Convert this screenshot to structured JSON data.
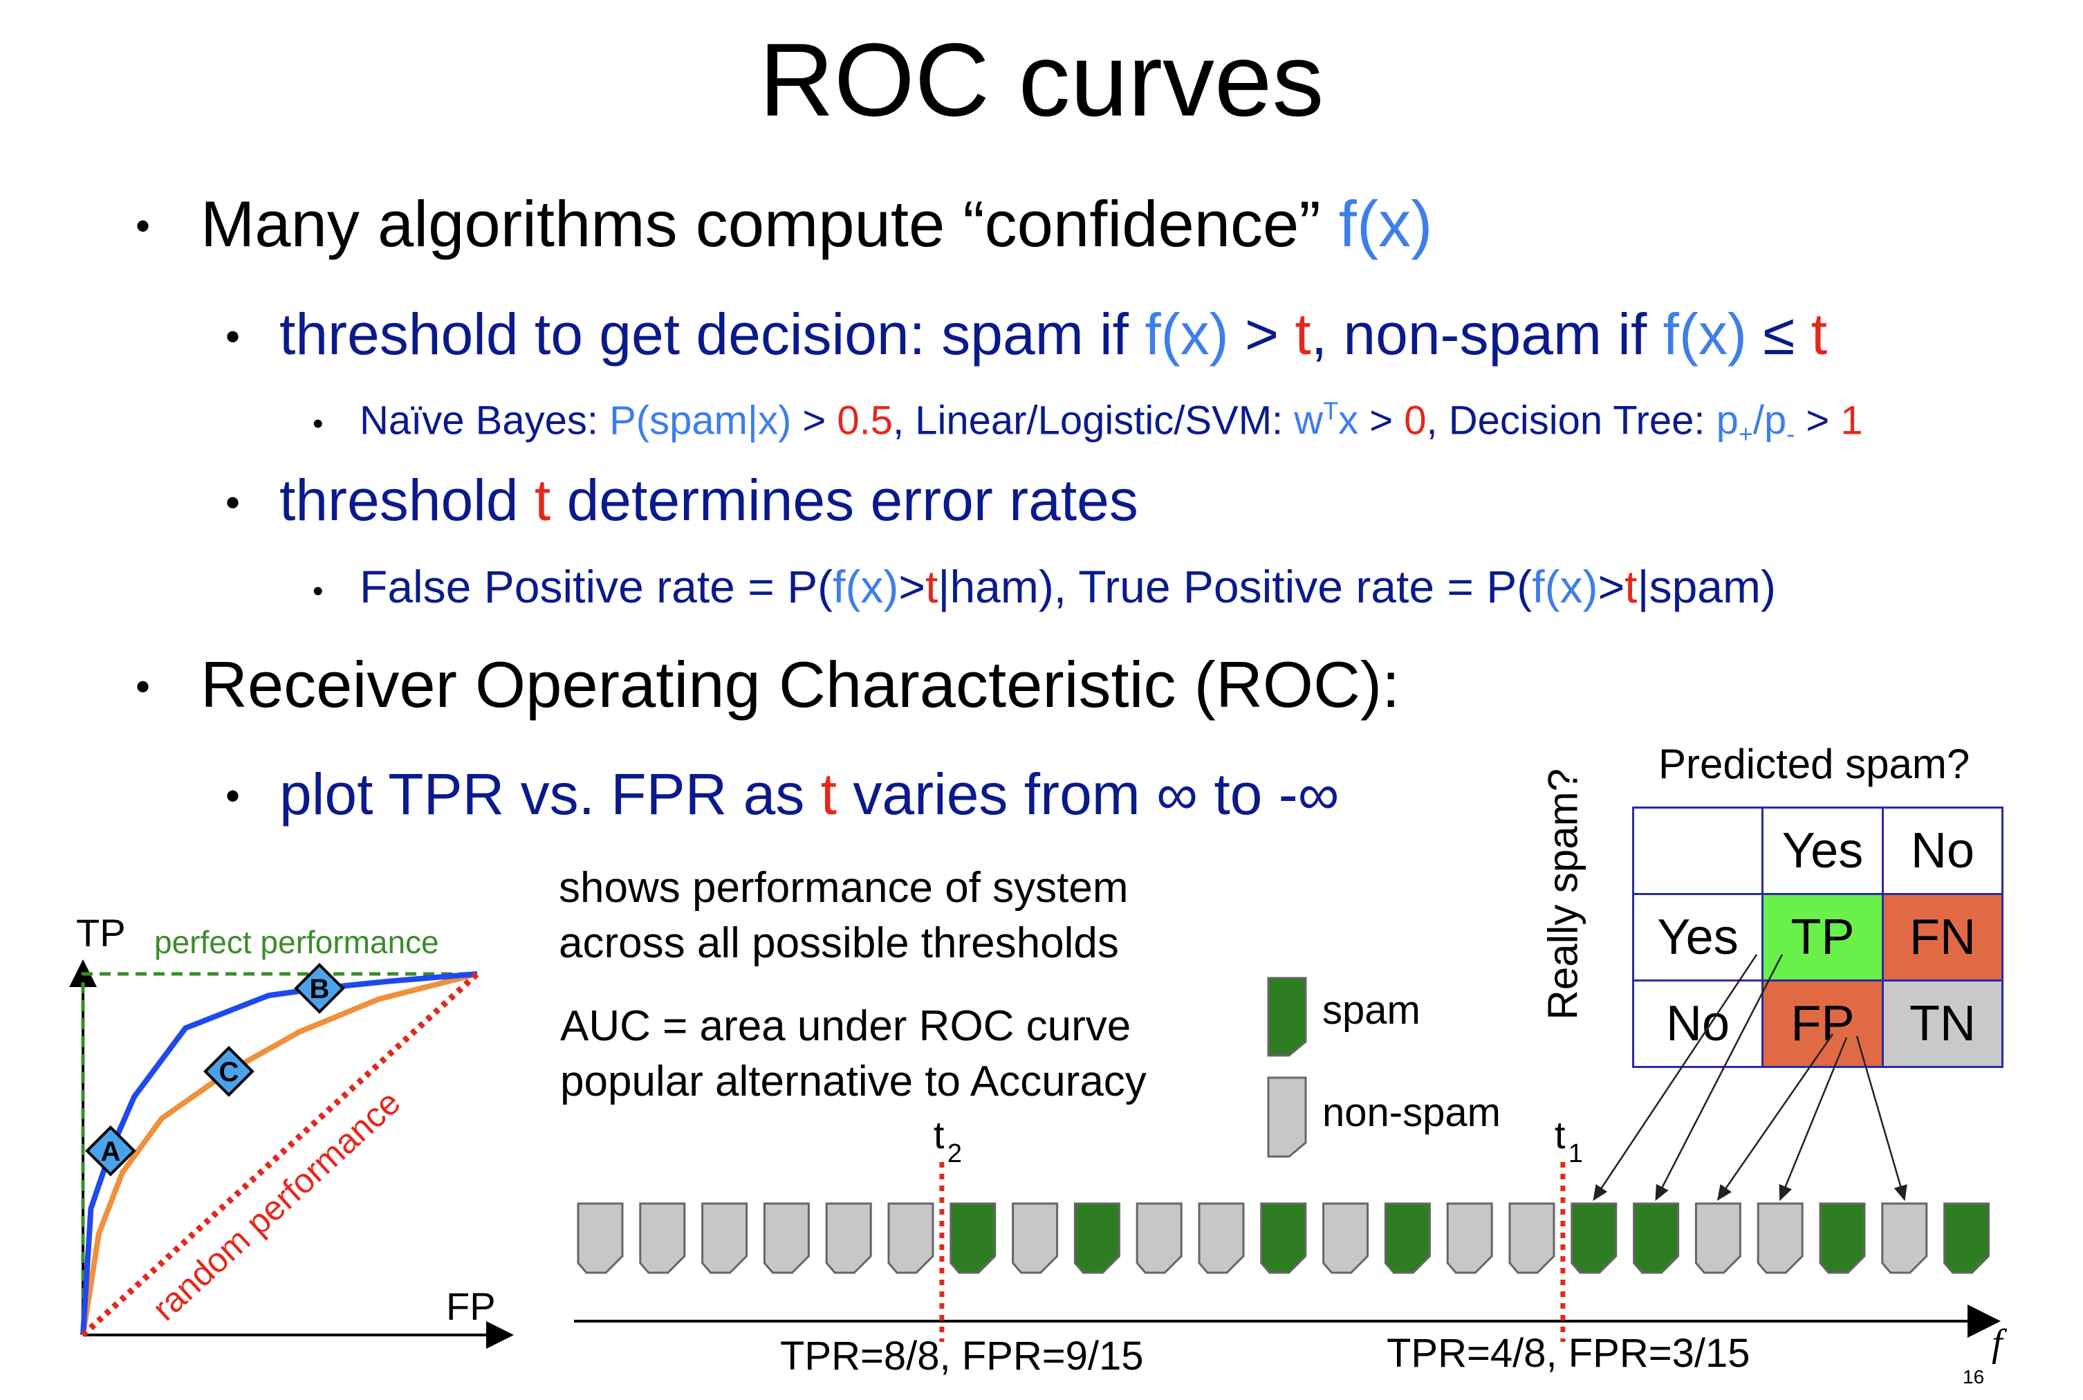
{
  "title": "ROC curves",
  "bullets": {
    "b1": {
      "text": "Many algorithms compute “confidence” ",
      "fx": "f(x)"
    },
    "b1a": {
      "p1": "threshold to get decision: spam if ",
      "fx": "f(x)",
      "gt": " > ",
      "t": "t",
      "p2": ", non-spam if ",
      "fx2": "f(x)",
      "le": " ≤ ",
      "t2": "t"
    },
    "b1a1": {
      "p1": "Naïve Bayes: ",
      "pspam": "P(spam|x)",
      "gt1": " > ",
      "v05": "0.5",
      "p2": ", Linear/Logistic/SVM: ",
      "w": "w",
      "wsup": "T",
      "x": "x",
      "gt2": " > ",
      "v0": "0",
      "p3": ", Decision Tree: ",
      "pp": "p",
      "ppsub": "+",
      "slash": "/p",
      "pmsub": "-",
      "gt3": " > ",
      "v1": "1"
    },
    "b1b": {
      "p1": "threshold ",
      "t": "t",
      "p2": " determines error rates"
    },
    "b1b1": {
      "p1": "False Positive rate = P(",
      "fx": "f(x)",
      "gt": ">",
      "t": "t",
      "p2": "|ham), True Positive rate = P(",
      "fx2": "f(x)",
      "gt2": ">",
      "t2": "t",
      "p3": "|spam)"
    },
    "b2": {
      "text": "Receiver Operating Characteristic (ROC):"
    },
    "b2a": {
      "p1": "plot TPR vs. FPR as ",
      "t": "t",
      "p2": " varies from ∞ to -∞"
    }
  },
  "description": {
    "line1": "shows performance of system",
    "line2": "across all possible thresholds",
    "line3": "AUC = area under ROC curve",
    "line4": "popular alternative to Accuracy"
  },
  "roc_plot": {
    "y_label": "TP",
    "x_label": "FP",
    "perfect_label": "perfect performance",
    "random_label": "random performance",
    "points": [
      {
        "label": "A",
        "fpr": 0.07,
        "tpr": 0.51
      },
      {
        "label": "B",
        "fpr": 0.6,
        "tpr": 0.96
      },
      {
        "label": "C",
        "fpr": 0.37,
        "tpr": 0.73
      }
    ],
    "curves": {
      "blue": [
        [
          0,
          0
        ],
        [
          0.02,
          0.35
        ],
        [
          0.07,
          0.51
        ],
        [
          0.13,
          0.66
        ],
        [
          0.26,
          0.85
        ],
        [
          0.47,
          0.94
        ],
        [
          0.6,
          0.96
        ],
        [
          0.78,
          0.98
        ],
        [
          1,
          1
        ]
      ],
      "orange": [
        [
          0,
          0
        ],
        [
          0.04,
          0.28
        ],
        [
          0.1,
          0.45
        ],
        [
          0.2,
          0.6
        ],
        [
          0.37,
          0.73
        ],
        [
          0.55,
          0.84
        ],
        [
          0.75,
          0.93
        ],
        [
          1,
          1
        ]
      ]
    },
    "colors": {
      "blue": "#1f49ee",
      "orange": "#f0903c",
      "green": "#3b8c2a",
      "red": "#e4281c",
      "marker": "#4aa3ea"
    }
  },
  "legend": {
    "spam": "spam",
    "nonspam": "non-spam"
  },
  "confusion": {
    "title": "Predicted spam?",
    "side_label": "Really spam?",
    "col_yes": "Yes",
    "col_no": "No",
    "row_yes": "Yes",
    "row_no": "No",
    "tp": "TP",
    "fn": "FN",
    "fp": "FP",
    "tn": "TN",
    "colors": {
      "tp": "#6af04b",
      "fn": "#e06a44",
      "fp": "#e06a44",
      "tn": "#c9c9c9"
    }
  },
  "sequence": {
    "items": [
      "n",
      "n",
      "n",
      "n",
      "n",
      "n",
      "s",
      "n",
      "s",
      "n",
      "n",
      "s",
      "n",
      "s",
      "n",
      "n",
      "s",
      "s",
      "n",
      "n",
      "s",
      "n",
      "s"
    ],
    "t2_label": "t",
    "t2_sub": "2",
    "t1_label": "t",
    "t1_sub": "1",
    "t2_after_index": 5,
    "t1_after_index": 15,
    "stat2": "TPR=8/8, FPR=9/15",
    "stat1": "TPR=4/8, FPR=3/15",
    "axis_label": "f",
    "page_number": "16",
    "colors": {
      "spam": "#2f7d22",
      "nonspam": "#c7c7c7"
    }
  }
}
